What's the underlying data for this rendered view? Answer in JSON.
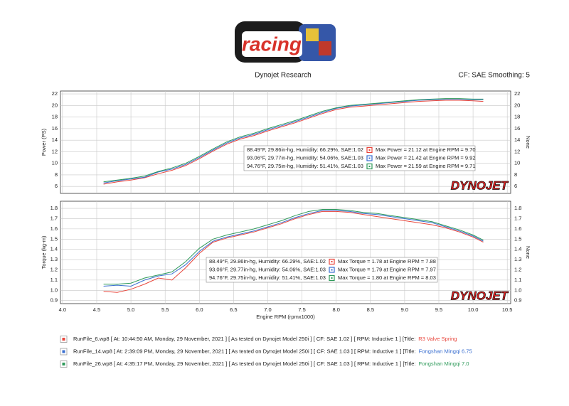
{
  "header": {
    "logo_text": "racing",
    "left": "Dynojet Research",
    "right": "CF: SAE Smoothing: 5"
  },
  "chart_data": [
    {
      "type": "line",
      "ylabel": "Power (PS)",
      "y2label": "None",
      "watermark": "DYNOJET",
      "ylim": [
        4.8,
        22.5
      ],
      "yticks": [
        6,
        8,
        10,
        12,
        14,
        16,
        18,
        20,
        22
      ],
      "grid": true,
      "x": [
        4.6,
        4.8,
        5.0,
        5.2,
        5.4,
        5.6,
        5.8,
        6.0,
        6.2,
        6.4,
        6.6,
        6.8,
        7.0,
        7.2,
        7.4,
        7.6,
        7.8,
        8.0,
        8.2,
        8.4,
        8.6,
        8.8,
        9.0,
        9.2,
        9.4,
        9.6,
        9.8,
        10.0,
        10.15
      ],
      "series": [
        {
          "color": "#e8463c",
          "legend_text": "88.49°F, 29.86in-hg, Humidity: 66.29%, SAE:1.02",
          "max_text": "Max Power = 21.12 at Engine RPM = 9.70",
          "values": [
            6.4,
            6.8,
            7.1,
            7.5,
            8.2,
            8.8,
            9.6,
            10.8,
            12.1,
            13.3,
            14.2,
            14.8,
            15.6,
            16.3,
            17.0,
            17.8,
            18.6,
            19.3,
            19.7,
            19.9,
            20.1,
            20.3,
            20.5,
            20.7,
            20.8,
            20.9,
            20.9,
            20.8,
            20.7
          ]
        },
        {
          "color": "#3a6fd0",
          "legend_text": "93.06°F, 29.77in-hg, Humidity: 54.06%, SAE:1.03",
          "max_text": "Max Power = 21.42 at Engine RPM = 9.92",
          "values": [
            6.6,
            7.0,
            7.3,
            7.6,
            8.5,
            9.0,
            9.8,
            11.0,
            12.3,
            13.5,
            14.4,
            15.0,
            15.8,
            16.5,
            17.2,
            18.0,
            18.8,
            19.5,
            19.9,
            20.1,
            20.3,
            20.5,
            20.7,
            20.9,
            21.0,
            21.1,
            21.1,
            21.0,
            21.0
          ]
        },
        {
          "color": "#2e9a5a",
          "legend_text": "94.76°F, 29.75in-hg, Humidity: 51.41%, SAE:1.03",
          "max_text": "Max Power = 21.59 at Engine RPM = 9.71",
          "values": [
            6.8,
            7.1,
            7.4,
            7.8,
            8.6,
            9.2,
            10.0,
            11.2,
            12.5,
            13.7,
            14.6,
            15.2,
            16.0,
            16.7,
            17.4,
            18.2,
            19.0,
            19.6,
            20.0,
            20.2,
            20.4,
            20.6,
            20.8,
            21.0,
            21.1,
            21.2,
            21.2,
            21.1,
            21.1
          ]
        }
      ]
    },
    {
      "type": "line",
      "ylabel": "Torque (kg-m)",
      "y2label": "None",
      "watermark": "DYNOJET",
      "xlabel": "Engine RPM (rpmx1000)",
      "xlim": [
        3.97,
        10.55
      ],
      "xticks": [
        {
          "value": 4,
          "label": "4.0"
        },
        4.5,
        {
          "value": 5,
          "label": "5.0"
        },
        5.5,
        {
          "value": 6,
          "label": "6.0"
        },
        6.5,
        {
          "value": 7,
          "label": "7.0"
        },
        7.5,
        {
          "value": 8,
          "label": "8.0"
        },
        8.5,
        {
          "value": 9,
          "label": "9.0"
        },
        9.5,
        {
          "value": 10,
          "label": "10.0"
        },
        10.5
      ],
      "ylim": [
        0.87,
        1.87
      ],
      "yticks": [
        0.9,
        {
          "value": 1,
          "label": "1.0"
        },
        1.1,
        1.2,
        1.3,
        1.4,
        1.5,
        1.6,
        1.7,
        1.8
      ],
      "grid": true,
      "x": [
        4.6,
        4.8,
        5.0,
        5.2,
        5.4,
        5.6,
        5.8,
        6.0,
        6.2,
        6.4,
        6.6,
        6.8,
        7.0,
        7.2,
        7.4,
        7.6,
        7.8,
        8.0,
        8.2,
        8.4,
        8.6,
        8.8,
        9.0,
        9.2,
        9.4,
        9.6,
        9.8,
        10.0,
        10.15
      ],
      "series": [
        {
          "color": "#e8463c",
          "legend_text": "88.49°F, 29.86in-hg, Humidity: 66.29%, SAE:1.02",
          "max_text": "Max Torque = 1.78 at Engine RPM = 7.88",
          "values": [
            0.99,
            0.98,
            1.01,
            1.06,
            1.12,
            1.1,
            1.22,
            1.36,
            1.47,
            1.51,
            1.54,
            1.57,
            1.61,
            1.65,
            1.7,
            1.74,
            1.77,
            1.77,
            1.76,
            1.74,
            1.72,
            1.7,
            1.68,
            1.66,
            1.64,
            1.61,
            1.57,
            1.52,
            1.47
          ]
        },
        {
          "color": "#3a6fd0",
          "legend_text": "93.06°F, 29.77in-hg, Humidity: 54.06%, SAE:1.03",
          "max_text": "Max Torque = 1.79 at Engine RPM = 7.97",
          "values": [
            1.04,
            1.05,
            1.04,
            1.1,
            1.14,
            1.16,
            1.25,
            1.38,
            1.48,
            1.52,
            1.55,
            1.58,
            1.62,
            1.66,
            1.71,
            1.75,
            1.78,
            1.78,
            1.77,
            1.75,
            1.74,
            1.72,
            1.7,
            1.68,
            1.66,
            1.62,
            1.58,
            1.53,
            1.48
          ]
        },
        {
          "color": "#2e9a5a",
          "legend_text": "94.76°F, 29.75in-hg, Humidity: 51.41%, SAE:1.03",
          "max_text": "Max Torque = 1.80 at Engine RPM = 8.03",
          "values": [
            1.06,
            1.06,
            1.07,
            1.12,
            1.15,
            1.18,
            1.28,
            1.41,
            1.5,
            1.54,
            1.57,
            1.6,
            1.64,
            1.68,
            1.73,
            1.77,
            1.79,
            1.79,
            1.78,
            1.76,
            1.75,
            1.73,
            1.71,
            1.69,
            1.67,
            1.63,
            1.59,
            1.54,
            1.49
          ]
        }
      ]
    }
  ],
  "run_files": [
    {
      "color": "#e8463c",
      "text": "RunFile_6.wp8  [ At: 10:44:50 AM, Monday, 29 November, 2021 ]  [ As tested on Dynojet Model 250i ]  [ CF: SAE 1.02 ]  [ RPM: Inductive 1 ]  [Title:",
      "title": "R3 Valve Spring"
    },
    {
      "color": "#3a6fd0",
      "text": "RunFile_14.wp8  [ At: 2:39:09 PM, Monday, 29 November, 2021 ]  [ As tested on Dynojet Model 250i ]  [ CF: SAE 1.03 ]  [ RPM: Inductive 1 ]  [Title:",
      "title": "Fongshan Mingqi 6.75"
    },
    {
      "color": "#2e9a5a",
      "text": "RunFile_26.wp8  [ At: 4:35:17 PM, Monday, 29 November, 2021 ]  [ As tested on Dynojet Model 250i ]  [ CF: SAE 1.03 ]  [ RPM: Inductive 1 ]  [Title:",
      "title": "Fongshan Mingqi 7.0"
    }
  ]
}
